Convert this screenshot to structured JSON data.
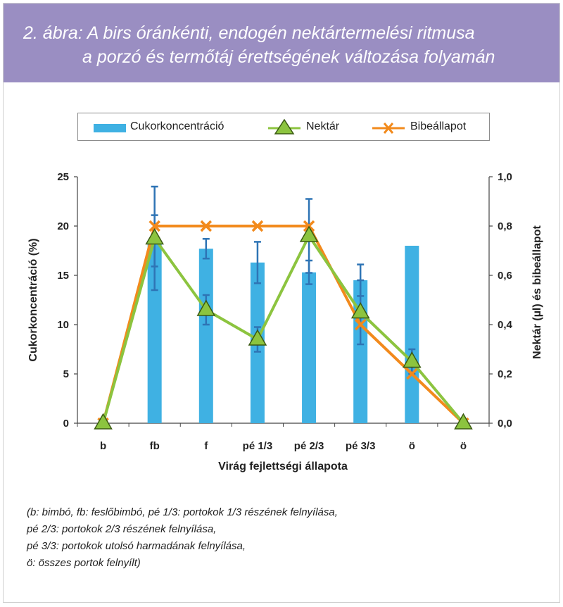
{
  "header": {
    "title_line1": "2. ábra: A birs óránkénti, endogén nektártermelési ritmusa",
    "title_line2": "a porzó és termőtáj érettségének változása folyamán"
  },
  "legend": {
    "items": [
      {
        "label": "Cukorkoncentráció",
        "color": "#3fb1e3",
        "marker": "bar"
      },
      {
        "label": "Nektár",
        "color": "#8cc43f",
        "marker": "triangle"
      },
      {
        "label": "Bibeállapot",
        "color": "#f28a1c",
        "marker": "cross"
      }
    ]
  },
  "chart_data": {
    "type": "bar",
    "categories": [
      "b",
      "fb",
      "f",
      "pé 1/3",
      "pé 2/3",
      "pé 3/3",
      "ö",
      "ö"
    ],
    "xlabel": "Virág fejlettségi állapota",
    "ylabel": "Cukorkoncentráció (%)",
    "y2label": "Nektár (µl) és bibeállapot",
    "ylim": [
      0,
      25
    ],
    "y2lim": [
      0,
      1.0
    ],
    "yticks": [
      "0",
      "5",
      "10",
      "15",
      "20",
      "25"
    ],
    "y2ticks": [
      "0,0",
      "0,2",
      "0,4",
      "0,6",
      "0,8",
      "1,0"
    ],
    "series": [
      {
        "name": "Cukorkoncentráció",
        "axis": "left",
        "type": "bar",
        "color": "#3fb1e3",
        "values": [
          null,
          18.5,
          17.7,
          16.3,
          15.3,
          14.5,
          18.0,
          null
        ],
        "error": [
          null,
          2.6,
          1.0,
          2.1,
          1.2,
          1.6,
          null,
          null
        ]
      },
      {
        "name": "Nektár",
        "axis": "right",
        "type": "line",
        "color": "#8cc43f",
        "marker": "triangle",
        "values": [
          0.0,
          0.75,
          0.46,
          0.34,
          0.76,
          0.45,
          0.25,
          0.0
        ],
        "error": [
          null,
          0.21,
          0.06,
          0.05,
          0.15,
          0.13,
          0.05,
          null
        ]
      },
      {
        "name": "Bibeállapot",
        "axis": "right",
        "type": "line",
        "color": "#f28a1c",
        "marker": "cross",
        "values": [
          0.0,
          0.8,
          0.8,
          0.8,
          0.8,
          0.4,
          0.2,
          0.0
        ]
      }
    ],
    "error_bar_color": "#2e74b5",
    "grid": false
  },
  "notes": [
    "(b: bimbó, fb: feslőbimbó, pé 1/3: portokok 1/3 részének felnyílása,",
    "pé 2/3: portokok 2/3 részének felnyílása,",
    "pé 3/3: portokok utolsó harmadának felnyílása,",
    "ö: összes portok felnyílt)"
  ]
}
